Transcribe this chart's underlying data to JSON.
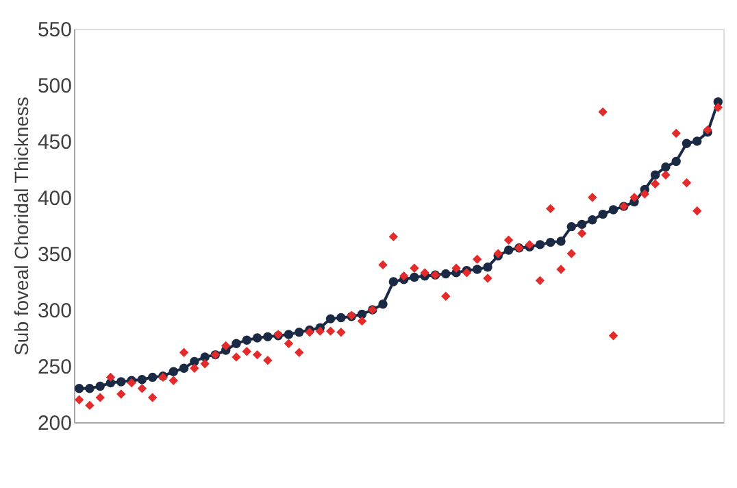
{
  "chart_data": {
    "type": "line",
    "ylabel": "Sub foveal Choridal Thickness",
    "categories": [
      null,
      null,
      null,
      null,
      null,
      null,
      null,
      null,
      null,
      null,
      null,
      null,
      null,
      null,
      null,
      null,
      null,
      null,
      null,
      null,
      null,
      null,
      null,
      null,
      null,
      null,
      null,
      null,
      null,
      null,
      null,
      null,
      null,
      null,
      null,
      null,
      null,
      null,
      null,
      null,
      null,
      null,
      null,
      null,
      null,
      null,
      null,
      null,
      null,
      null,
      null,
      null,
      null,
      null,
      null,
      null,
      null,
      null,
      null,
      null,
      null,
      null
    ],
    "series": [
      {
        "marker": "circle",
        "color": "#1a2a44",
        "values": [
          230,
          230,
          232,
          235,
          236,
          237,
          238,
          240,
          241,
          245,
          248,
          254,
          258,
          260,
          264,
          270,
          273,
          275,
          276,
          277,
          278,
          280,
          282,
          284,
          292,
          293,
          294,
          296,
          300,
          305,
          325,
          327,
          329,
          330,
          331,
          332,
          333,
          335,
          336,
          338,
          348,
          353,
          355,
          356,
          358,
          360,
          361,
          374,
          376,
          380,
          385,
          389,
          392,
          396,
          407,
          420,
          427,
          432,
          448,
          450,
          458,
          485
        ]
      },
      {
        "type": "scatter",
        "marker": "diamond",
        "color": "#e32b2b",
        "values": [
          220,
          215,
          222,
          240,
          225,
          235,
          230,
          222,
          240,
          237,
          262,
          248,
          252,
          260,
          268,
          258,
          263,
          260,
          255,
          278,
          270,
          262,
          280,
          281,
          281,
          280,
          295,
          290,
          300,
          340,
          365,
          330,
          337,
          333,
          331,
          312,
          337,
          333,
          345,
          328,
          350,
          362,
          355,
          358,
          326,
          390,
          336,
          350,
          368,
          400,
          476,
          277,
          392,
          400,
          403,
          412,
          420,
          457,
          413,
          388,
          460,
          480
        ]
      }
    ],
    "ylim": [
      200,
      550
    ],
    "yticks": [
      200,
      250,
      300,
      350,
      400,
      450,
      500,
      550
    ],
    "grid": false,
    "tick_labels": "y"
  }
}
